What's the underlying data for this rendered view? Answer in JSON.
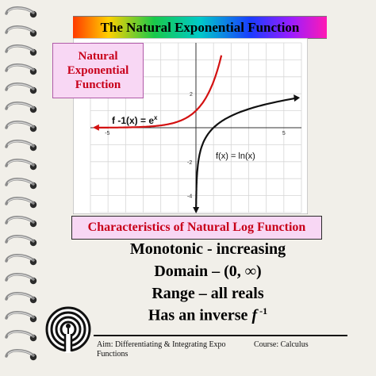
{
  "slide": {
    "title": "The Natural Exponential Function",
    "callout_line1": "Natural",
    "callout_line2": "Exponential",
    "callout_line3": "Function",
    "graph": {
      "exp_label": "f -1(x) = e",
      "exp_label_sup": "x",
      "ln_label": "f(x) = ln(x)",
      "ticks": {
        "x_neg": "-5",
        "x_pos": "5",
        "y_2": "2",
        "y_neg2": "-2",
        "y_neg4": "-4"
      }
    },
    "char_heading": "Characteristics of Natural Log Function",
    "bullets": {
      "b1": "Monotonic - increasing",
      "b2": "Domain – (0, ∞)",
      "b3": "Range – all reals",
      "b4_prefix": "Has an inverse ",
      "b4_f": "f",
      "b4_sup": " -1"
    },
    "footer": {
      "aim": "Aim:  Differentiating & Integrating Expo Functions",
      "course": "Course: Calculus"
    }
  },
  "colors": {
    "exp_curve": "#d31111",
    "ln_curve": "#111111",
    "callout_bg": "#f8d7f4",
    "callout_text": "#c8001a"
  },
  "chart_data": {
    "type": "line",
    "xlim": [
      -6,
      6
    ],
    "ylim": [
      -5,
      5
    ],
    "series": [
      {
        "name": "f -1(x) = e^x",
        "x": [
          -6,
          -4,
          -2,
          -1,
          0,
          0.5,
          1,
          1.4
        ],
        "y": [
          0.0025,
          0.018,
          0.135,
          0.368,
          1,
          1.65,
          2.72,
          4.06
        ]
      },
      {
        "name": "f(x) = ln(x)",
        "x": [
          0.01,
          0.05,
          0.2,
          0.5,
          1,
          2,
          3,
          4,
          5,
          6
        ],
        "y": [
          -4.6,
          -3.0,
          -1.61,
          -0.69,
          0,
          0.69,
          1.1,
          1.39,
          1.61,
          1.79
        ]
      }
    ],
    "grid": true
  }
}
